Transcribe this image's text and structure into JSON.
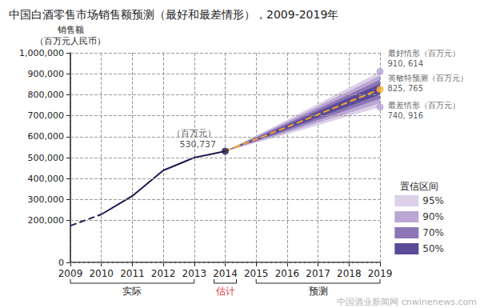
{
  "chart_data": {
    "type": "line",
    "title": "中国白酒零售市场销售额预测（最好和最差情形），2009-2019年",
    "y_label": [
      "销售额",
      "（百万元人民币）"
    ],
    "categories": [
      "2009",
      "2010",
      "2011",
      "2012",
      "2013",
      "2014",
      "2015",
      "2016",
      "2017",
      "2018",
      "2019"
    ],
    "ylim": [
      0,
      1000000
    ],
    "yticks": [
      0,
      {
        "value": 200000,
        "label": "200,000"
      },
      {
        "value": 300000,
        "label": "300,000"
      },
      {
        "value": 400000,
        "label": "400,000"
      },
      {
        "value": 500000,
        "label": "500,000"
      },
      {
        "value": 600000,
        "label": "600,000"
      },
      {
        "value": 700000,
        "label": "700,000"
      },
      {
        "value": 800000,
        "label": "800,000"
      },
      {
        "value": 900000,
        "label": "900,000"
      },
      {
        "value": 1000000,
        "label": "1,000,000"
      }
    ],
    "grid": true,
    "legend": "lower right",
    "series": [
      {
        "type": "line",
        "color": "#1c1a4f",
        "line_style": "dashed",
        "values": [
          175000,
          229000,
          null,
          null,
          null,
          null,
          null,
          null,
          null,
          null,
          null
        ]
      },
      {
        "type": "line",
        "color": "#1c1a4f",
        "line_style": "solid",
        "values": [
          null,
          229000,
          317000,
          439000,
          500000,
          530737,
          null,
          null,
          null,
          null,
          null
        ]
      },
      {
        "type": "line",
        "color": "#f5a623",
        "line_style": "dashed",
        "values": [
          null,
          null,
          null,
          null,
          null,
          530737,
          588000,
          646000,
          706000,
          766000,
          825765
        ]
      },
      {
        "type": "scatter",
        "name": "（百万元）",
        "color": "#1c1a4f",
        "marker": "circle",
        "values": [
          null,
          null,
          null,
          null,
          null,
          530737,
          null,
          null,
          null,
          null,
          null
        ],
        "value_labels": [
          null,
          null,
          null,
          null,
          null,
          "530,737",
          null,
          null,
          null,
          null,
          null
        ]
      },
      {
        "type": "scatter",
        "name": "最好情形（百万元）",
        "color": "#b7a4d6",
        "marker": "circle",
        "values": [
          null,
          null,
          null,
          null,
          null,
          null,
          null,
          null,
          null,
          null,
          910614
        ],
        "value_labels": [
          null,
          null,
          null,
          null,
          null,
          null,
          null,
          null,
          null,
          null,
          "910, 614"
        ]
      },
      {
        "type": "scatter",
        "name": "英敏特预测（百万元）",
        "color": "#f5b030",
        "marker": "circle",
        "values": [
          null,
          null,
          null,
          null,
          null,
          null,
          null,
          null,
          null,
          null,
          825765
        ],
        "value_labels": [
          null,
          null,
          null,
          null,
          null,
          null,
          null,
          null,
          null,
          null,
          "825, 765"
        ]
      },
      {
        "type": "scatter",
        "name": "最差情形（百万元）",
        "color": "#b7a4d6",
        "marker": "circle",
        "values": [
          null,
          null,
          null,
          null,
          null,
          null,
          null,
          null,
          null,
          null,
          740916
        ],
        "value_labels": [
          null,
          null,
          null,
          null,
          null,
          null,
          null,
          null,
          null,
          null,
          "740, 916"
        ]
      }
    ],
    "intervals": {
      "title": "置信区间",
      "bands": [
        {
          "name": "95%",
          "color": "#dcd1e9",
          "lower": [
            null,
            null,
            null,
            null,
            null,
            530737,
            571000,
            612000,
            655000,
            698000,
            740916
          ],
          "upper": [
            null,
            null,
            null,
            null,
            null,
            530737,
            605000,
            680000,
            757000,
            834000,
            910614
          ]
        },
        {
          "name": "90%",
          "color": "#bba7d3",
          "lower": [
            null,
            null,
            null,
            null,
            null,
            530737,
            575000,
            620000,
            667000,
            714000,
            760000
          ],
          "upper": [
            null,
            null,
            null,
            null,
            null,
            530737,
            601000,
            672000,
            745000,
            818000,
            891000
          ]
        },
        {
          "name": "70%",
          "color": "#8c76b6",
          "lower": [
            null,
            null,
            null,
            null,
            null,
            530737,
            579000,
            628000,
            679000,
            730000,
            781000
          ],
          "upper": [
            null,
            null,
            null,
            null,
            null,
            530737,
            597000,
            664000,
            733000,
            802000,
            871000
          ]
        },
        {
          "name": "50%",
          "color": "#5b4a97",
          "lower": [
            null,
            null,
            null,
            null,
            null,
            530737,
            583000,
            636000,
            691000,
            746000,
            801000
          ],
          "upper": [
            null,
            null,
            null,
            null,
            null,
            530737,
            593000,
            656000,
            721000,
            786000,
            851000
          ]
        }
      ]
    },
    "periods": [
      {
        "text": "实际",
        "from": "2009",
        "to": "2013",
        "color": "#222222"
      },
      {
        "text": "估计",
        "from": "2014",
        "to": "2014",
        "color": "#e8383d"
      },
      {
        "text": "预测",
        "from": "2015",
        "to": "2019",
        "color": "#222222"
      }
    ],
    "watermark": "中国酒业新闻网 cnwinenews.com"
  }
}
